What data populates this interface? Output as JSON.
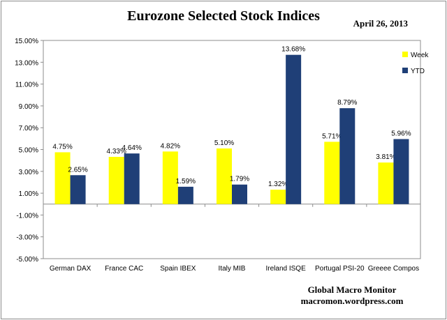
{
  "chart_data": {
    "type": "bar",
    "title": "Eurozone Selected Stock Indices",
    "date_label": "April 26, 2013",
    "credit_line1": "Global Macro Monitor",
    "credit_line2": "macromon.wordpress.com",
    "categories": [
      "German DAX",
      "France CAC",
      "Spain IBEX",
      "Italy MIB",
      "Ireland ISQE",
      "Portugal PSI-20",
      "Greeee Compos"
    ],
    "series": [
      {
        "name": "Week",
        "values": [
          4.75,
          4.33,
          4.82,
          5.1,
          1.32,
          5.71,
          3.81
        ],
        "labels": [
          "4.75%",
          "4.33%",
          "4.82%",
          "5.10%",
          "1.32%",
          "5.71%",
          "3.81%"
        ],
        "color": "#ffff00"
      },
      {
        "name": "YTD",
        "values": [
          2.65,
          4.64,
          1.59,
          1.79,
          13.68,
          8.79,
          5.96
        ],
        "labels": [
          "2.65%",
          "4.64%",
          "1.59%",
          "1.79%",
          "13.68%",
          "8.79%",
          "5.96%"
        ],
        "color": "#1f3f77"
      }
    ],
    "ylim": [
      -5,
      15
    ],
    "yticks": [
      15,
      13,
      11,
      9,
      7,
      5,
      3,
      1,
      -1,
      -3,
      -5
    ],
    "ytick_labels": [
      "15.00%",
      "13.00%",
      "11.00%",
      "9.00%",
      "7.00%",
      "5.00%",
      "3.00%",
      "1.00%",
      "-1.00%",
      "-3.00%",
      "-5.00%"
    ],
    "grid": false,
    "legend_position": "right"
  }
}
